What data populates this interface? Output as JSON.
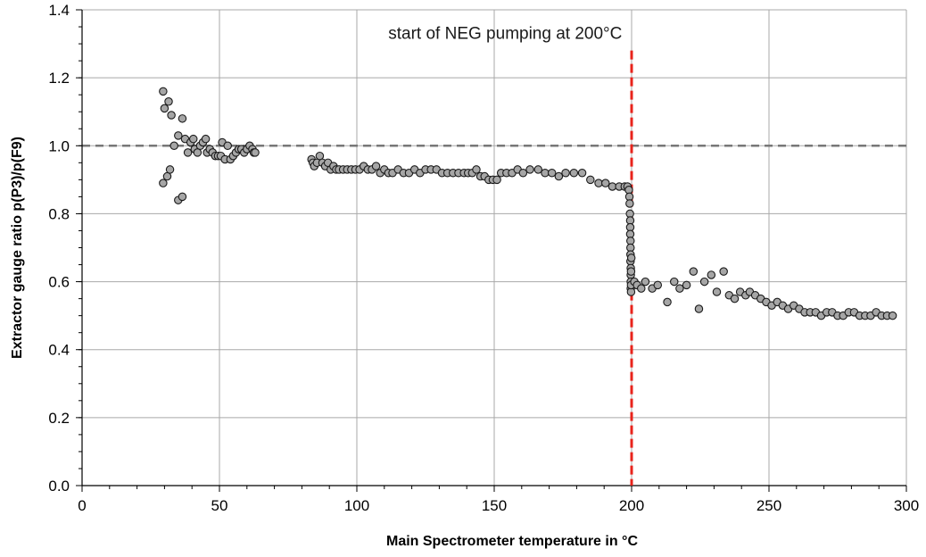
{
  "chart_data": {
    "type": "scatter",
    "title": "",
    "xlabel": "Main Spectrometer temperature in °C",
    "ylabel": "Extractor gauge ratio p(P3)/p(F9)",
    "xlim": [
      0,
      300
    ],
    "ylim": [
      0,
      1.4
    ],
    "x_ticks": [
      "0",
      "50",
      "100",
      "150",
      "200",
      "250",
      "300"
    ],
    "y_ticks": [
      "0.0",
      "0.2",
      "0.4",
      "0.6",
      "0.8",
      "1.0",
      "1.2",
      "1.4"
    ],
    "grid": true,
    "reference_line": {
      "y": 1.0,
      "style": "dashed",
      "color": "#777777"
    },
    "annotation": {
      "x": 200,
      "text": "start of NEG pumping at 200°C",
      "color": "#e8231b",
      "style": "dashed"
    },
    "marker": {
      "fill": "#a6a6a6",
      "stroke": "#1a1a1a"
    },
    "series": [
      {
        "points": [
          [
            29.5,
            1.16
          ],
          [
            30,
            1.11
          ],
          [
            31.5,
            1.13
          ],
          [
            32.5,
            1.09
          ],
          [
            33.5,
            1.0
          ],
          [
            35,
            1.03
          ],
          [
            36.5,
            1.08
          ],
          [
            37.5,
            1.02
          ],
          [
            38.5,
            0.98
          ],
          [
            39.5,
            1.01
          ],
          [
            40.5,
            1.02
          ],
          [
            41,
            0.99
          ],
          [
            42,
            0.98
          ],
          [
            43,
            1.0
          ],
          [
            44,
            1.01
          ],
          [
            45,
            1.02
          ],
          [
            45.5,
            0.98
          ],
          [
            46.5,
            0.99
          ],
          [
            47.5,
            0.98
          ],
          [
            48.5,
            0.97
          ],
          [
            49.5,
            0.97
          ],
          [
            50.5,
            0.97
          ],
          [
            51,
            1.01
          ],
          [
            52,
            0.96
          ],
          [
            53,
            1.0
          ],
          [
            54,
            0.96
          ],
          [
            55,
            0.97
          ],
          [
            56,
            0.98
          ],
          [
            57,
            0.99
          ],
          [
            58,
            0.99
          ],
          [
            59,
            0.98
          ],
          [
            60,
            0.99
          ],
          [
            61,
            1.0
          ],
          [
            62,
            0.99
          ],
          [
            62.5,
            0.98
          ],
          [
            63,
            0.98
          ],
          [
            29.5,
            0.89
          ],
          [
            31,
            0.91
          ],
          [
            32,
            0.93
          ],
          [
            35,
            0.84
          ],
          [
            36.5,
            0.85
          ],
          [
            83.5,
            0.96
          ],
          [
            84,
            0.95
          ],
          [
            84.5,
            0.94
          ],
          [
            85.5,
            0.95
          ],
          [
            86.5,
            0.97
          ],
          [
            87.5,
            0.95
          ],
          [
            88.5,
            0.94
          ],
          [
            89.5,
            0.95
          ],
          [
            90.5,
            0.93
          ],
          [
            91.5,
            0.94
          ],
          [
            92.5,
            0.93
          ],
          [
            93.5,
            0.93
          ],
          [
            95,
            0.93
          ],
          [
            96.5,
            0.93
          ],
          [
            98,
            0.93
          ],
          [
            99.5,
            0.93
          ],
          [
            101,
            0.93
          ],
          [
            102.5,
            0.94
          ],
          [
            104,
            0.93
          ],
          [
            105.5,
            0.93
          ],
          [
            107,
            0.94
          ],
          [
            108.5,
            0.92
          ],
          [
            110,
            0.93
          ],
          [
            111.5,
            0.92
          ],
          [
            113,
            0.92
          ],
          [
            115,
            0.93
          ],
          [
            117,
            0.92
          ],
          [
            119,
            0.92
          ],
          [
            121,
            0.93
          ],
          [
            123,
            0.92
          ],
          [
            125,
            0.93
          ],
          [
            127,
            0.93
          ],
          [
            129,
            0.93
          ],
          [
            131,
            0.92
          ],
          [
            133,
            0.92
          ],
          [
            135,
            0.92
          ],
          [
            137,
            0.92
          ],
          [
            139,
            0.92
          ],
          [
            140.5,
            0.92
          ],
          [
            142,
            0.92
          ],
          [
            143.5,
            0.93
          ],
          [
            145,
            0.91
          ],
          [
            146.5,
            0.91
          ],
          [
            148,
            0.9
          ],
          [
            149.5,
            0.9
          ],
          [
            151,
            0.9
          ],
          [
            152.5,
            0.92
          ],
          [
            154.5,
            0.92
          ],
          [
            156.5,
            0.92
          ],
          [
            158.5,
            0.93
          ],
          [
            160.5,
            0.92
          ],
          [
            163,
            0.93
          ],
          [
            166,
            0.93
          ],
          [
            168.5,
            0.92
          ],
          [
            171,
            0.92
          ],
          [
            173.5,
            0.91
          ],
          [
            176,
            0.92
          ],
          [
            179,
            0.92
          ],
          [
            182,
            0.92
          ],
          [
            185,
            0.9
          ],
          [
            188,
            0.89
          ],
          [
            190.5,
            0.89
          ],
          [
            193,
            0.88
          ],
          [
            195.5,
            0.88
          ],
          [
            197.5,
            0.88
          ],
          [
            198.5,
            0.88
          ],
          [
            199,
            0.87
          ],
          [
            199.2,
            0.85
          ],
          [
            199.3,
            0.83
          ],
          [
            199.4,
            0.8
          ],
          [
            199.5,
            0.78
          ],
          [
            199.5,
            0.76
          ],
          [
            199.5,
            0.74
          ],
          [
            199.6,
            0.72
          ],
          [
            199.6,
            0.7
          ],
          [
            199.6,
            0.68
          ],
          [
            199.6,
            0.66
          ],
          [
            199.7,
            0.64
          ],
          [
            199.7,
            0.62
          ],
          [
            199.7,
            0.6
          ],
          [
            199.7,
            0.58
          ],
          [
            199.8,
            0.57
          ],
          [
            199.8,
            0.59
          ],
          [
            199.8,
            0.63
          ],
          [
            199.9,
            0.67
          ],
          [
            201,
            0.6
          ],
          [
            202,
            0.59
          ],
          [
            203.5,
            0.58
          ],
          [
            205,
            0.6
          ],
          [
            207.5,
            0.58
          ],
          [
            209.5,
            0.59
          ],
          [
            213,
            0.54
          ],
          [
            215.5,
            0.6
          ],
          [
            217.5,
            0.58
          ],
          [
            220,
            0.59
          ],
          [
            222.5,
            0.63
          ],
          [
            224.5,
            0.52
          ],
          [
            226.5,
            0.6
          ],
          [
            229,
            0.62
          ],
          [
            231,
            0.57
          ],
          [
            233.5,
            0.63
          ],
          [
            235.5,
            0.56
          ],
          [
            237.5,
            0.55
          ],
          [
            239.5,
            0.57
          ],
          [
            241.5,
            0.56
          ],
          [
            243,
            0.57
          ],
          [
            245,
            0.56
          ],
          [
            247,
            0.55
          ],
          [
            249,
            0.54
          ],
          [
            251,
            0.53
          ],
          [
            253,
            0.54
          ],
          [
            255,
            0.53
          ],
          [
            257,
            0.52
          ],
          [
            259,
            0.53
          ],
          [
            261,
            0.52
          ],
          [
            263,
            0.51
          ],
          [
            265,
            0.51
          ],
          [
            267,
            0.51
          ],
          [
            269,
            0.5
          ],
          [
            271,
            0.51
          ],
          [
            273,
            0.51
          ],
          [
            275,
            0.5
          ],
          [
            277,
            0.5
          ],
          [
            279,
            0.51
          ],
          [
            281,
            0.51
          ],
          [
            283,
            0.5
          ],
          [
            285,
            0.5
          ],
          [
            287,
            0.5
          ],
          [
            289,
            0.51
          ],
          [
            291,
            0.5
          ],
          [
            293,
            0.5
          ],
          [
            295,
            0.5
          ]
        ]
      }
    ]
  }
}
